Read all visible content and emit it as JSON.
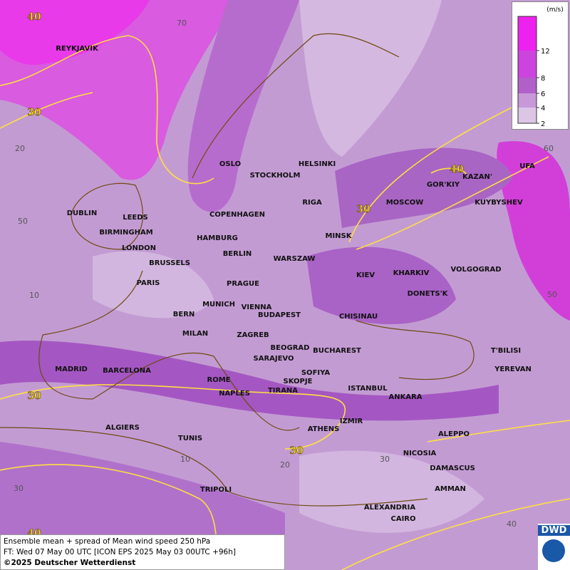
{
  "cities": [
    "REYKJAVIK",
    "OSLO",
    "STOCKHOLM",
    "HELSINKI",
    "DUBLIN",
    "LEEDS",
    "BIRMINGHAM",
    "LONDON",
    "COPENHAGEN",
    "HAMBURG",
    "RIGA",
    "MOSCOW",
    "KAZAN'",
    "GOR'KIY",
    "UFA",
    "KUYBYSHEV",
    "MINSK",
    "BERLIN",
    "WARSZAW",
    "BRUSSELS",
    "PARIS",
    "PRAGUE",
    "KIEV",
    "KHARKIV",
    "VOLGOGRAD",
    "DONETS'K",
    "MUNICH",
    "VIENNA",
    "BERN",
    "BUDAPEST",
    "CHISINAU",
    "MILAN",
    "ZAGREB",
    "BEOGRAD",
    "BUCHAREST",
    "T'BILISI",
    "SARAJEVO",
    "MADRID",
    "BARCELONA",
    "SOFIYA",
    "YEREVAN",
    "ROME",
    "SKOPJE",
    "ISTANBUL",
    "NAPLES",
    "TIRANA",
    "ANKARA",
    "IZMIR",
    "ALGIERS",
    "ATHENS",
    "ALEPPO",
    "TUNIS",
    "NICOSIA",
    "DAMASCUS",
    "TRIPOLI",
    "AMMAN",
    "ALEXANDRIA",
    "CAIRO"
  ],
  "contour_labels": [
    "40",
    "30",
    "40",
    "30",
    "30",
    "30",
    "40"
  ],
  "grid_labels": [
    "70",
    "20",
    "50",
    "10",
    "60",
    "50",
    "10",
    "20",
    "30",
    "30",
    "40"
  ],
  "legend": {
    "unit": "(m/s)",
    "ticks": [
      "12",
      "8",
      "6",
      "4",
      "2"
    ]
  },
  "footer": [
    "Ensemble mean + spread of Mean wind speed 250 hPa",
    "FT: Wed 07 May 00 UTC [ICON EPS 2025 May 03 00UTC +96h]",
    "©2025 Deutscher Wetterdienst"
  ],
  "logo": "DWD"
}
